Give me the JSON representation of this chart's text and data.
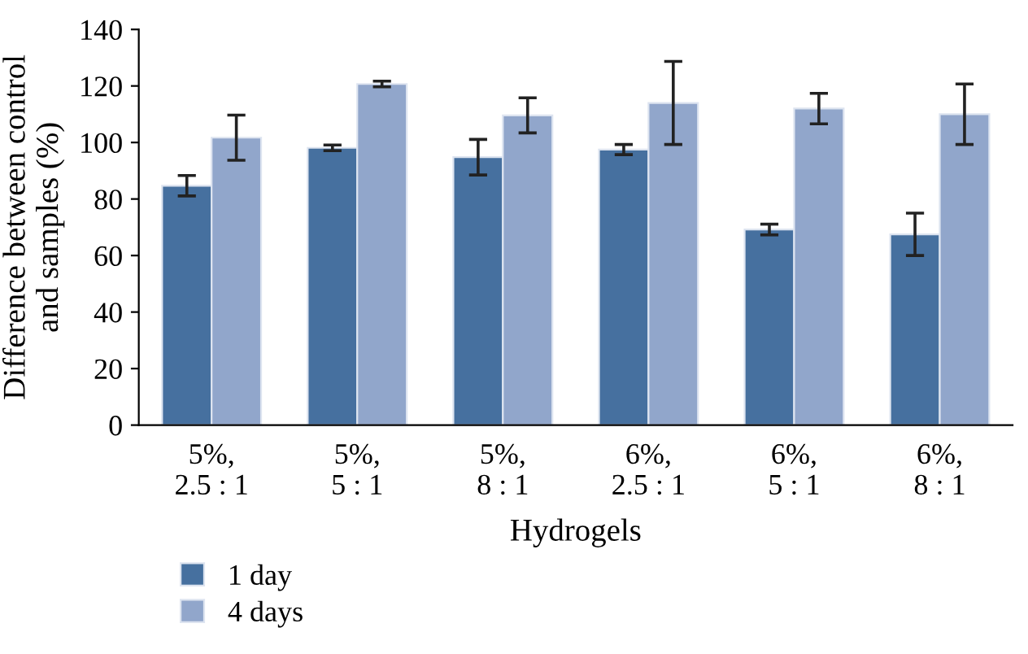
{
  "chart_data": {
    "type": "bar",
    "xlabel": "Hydrogels",
    "ylabel": "Difference between control\nand samples (%)",
    "categories": [
      "5%,\n2.5 : 1",
      "5%,\n5 : 1",
      "5%,\n8 : 1",
      "6%,\n2.5 : 1",
      "6%,\n5 : 1",
      "6%,\n8 : 1"
    ],
    "series": [
      {
        "name": "1 day",
        "color": "#46709f",
        "values": [
          84.7,
          98.1,
          94.8,
          97.5,
          69.2,
          67.5
        ],
        "errors": [
          3.6,
          1,
          6.3,
          1.8,
          1.9,
          7.5
        ]
      },
      {
        "name": "4 days",
        "color": "#91a6cb",
        "values": [
          101.7,
          120.7,
          109.6,
          114,
          112,
          110
        ],
        "errors": [
          8,
          1,
          6.2,
          14.7,
          5.4,
          10.7
        ]
      }
    ],
    "ylim": [
      0,
      140
    ],
    "yticks": [
      0,
      20,
      40,
      60,
      80,
      100,
      120,
      140
    ],
    "grid": false,
    "legend": "bottom left"
  }
}
